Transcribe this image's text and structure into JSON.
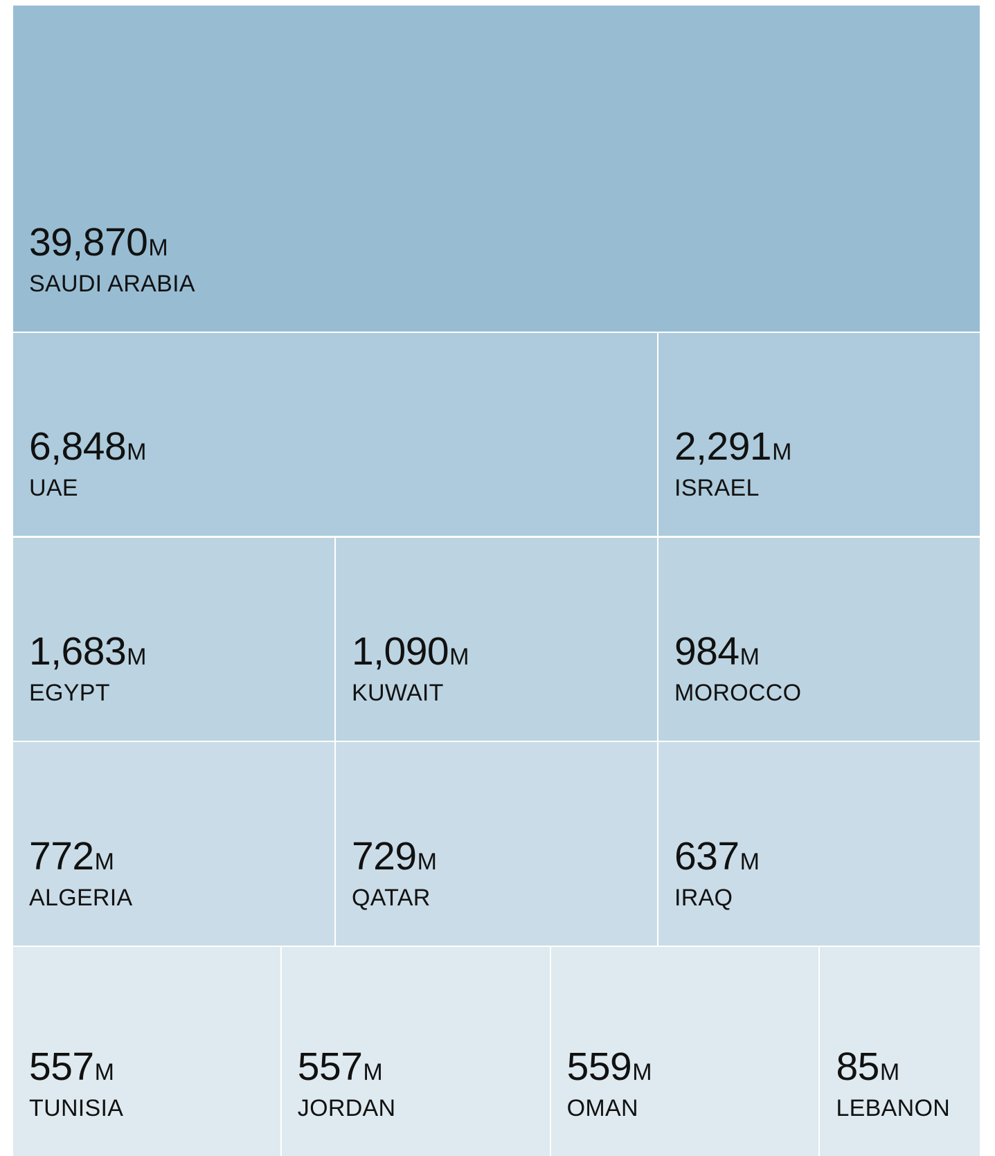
{
  "tiles": [
    {
      "value": "39,870",
      "unit": "M",
      "label": "SAUDI ARABIA"
    },
    {
      "value": "6,848",
      "unit": "M",
      "label": "UAE"
    },
    {
      "value": "2,291",
      "unit": "M",
      "label": "ISRAEL"
    },
    {
      "value": "1,683",
      "unit": "M",
      "label": "EGYPT"
    },
    {
      "value": "1,090",
      "unit": "M",
      "label": "KUWAIT"
    },
    {
      "value": "984",
      "unit": "M",
      "label": "MOROCCO"
    },
    {
      "value": "772",
      "unit": "M",
      "label": "ALGERIA"
    },
    {
      "value": "729",
      "unit": "M",
      "label": "QATAR"
    },
    {
      "value": "637",
      "unit": "M",
      "label": "IRAQ"
    },
    {
      "value": "557",
      "unit": "M",
      "label": "TUNISIA"
    },
    {
      "value": "557",
      "unit": "M",
      "label": "JORDAN"
    },
    {
      "value": "559",
      "unit": "M",
      "label": "OMAN"
    },
    {
      "value": "85",
      "unit": "M",
      "label": "LEBANON"
    }
  ]
}
